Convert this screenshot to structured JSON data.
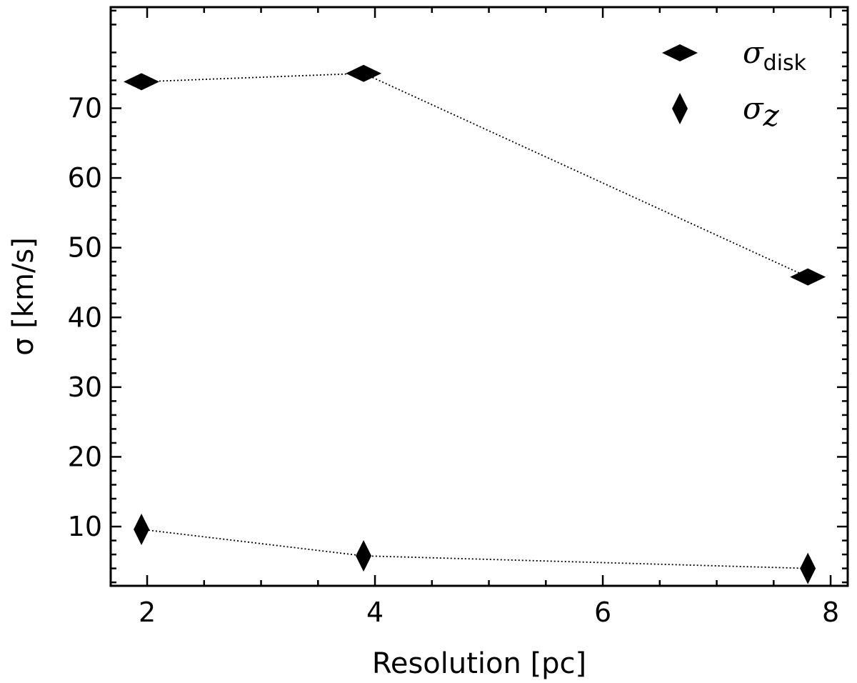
{
  "chart_data": {
    "type": "scatter",
    "xlabel": "Resolution [pc]",
    "ylabel": "σ [km/s]",
    "xlim": [
      1.68,
      8.15
    ],
    "ylim": [
      1.5,
      84.5
    ],
    "xticks": [
      2,
      4,
      6,
      8
    ],
    "yticks": [
      10,
      20,
      30,
      40,
      50,
      60,
      70
    ],
    "grid": false,
    "legend_position": "top-right",
    "series": [
      {
        "name": "σdisk",
        "name_base": "σ",
        "name_sub": "disk",
        "marker": "thin-diamond-horizontal",
        "line": "dotted",
        "color": "#000000",
        "x": [
          1.95,
          3.9,
          7.8
        ],
        "y": [
          73.8,
          75.0,
          45.8
        ]
      },
      {
        "name": "σz",
        "name_base": "σ",
        "name_sub": "z",
        "marker": "thin-diamond-vertical",
        "line": "dotted",
        "color": "#000000",
        "x": [
          1.95,
          3.9,
          7.8
        ],
        "y": [
          9.6,
          5.8,
          4.0
        ]
      }
    ]
  }
}
